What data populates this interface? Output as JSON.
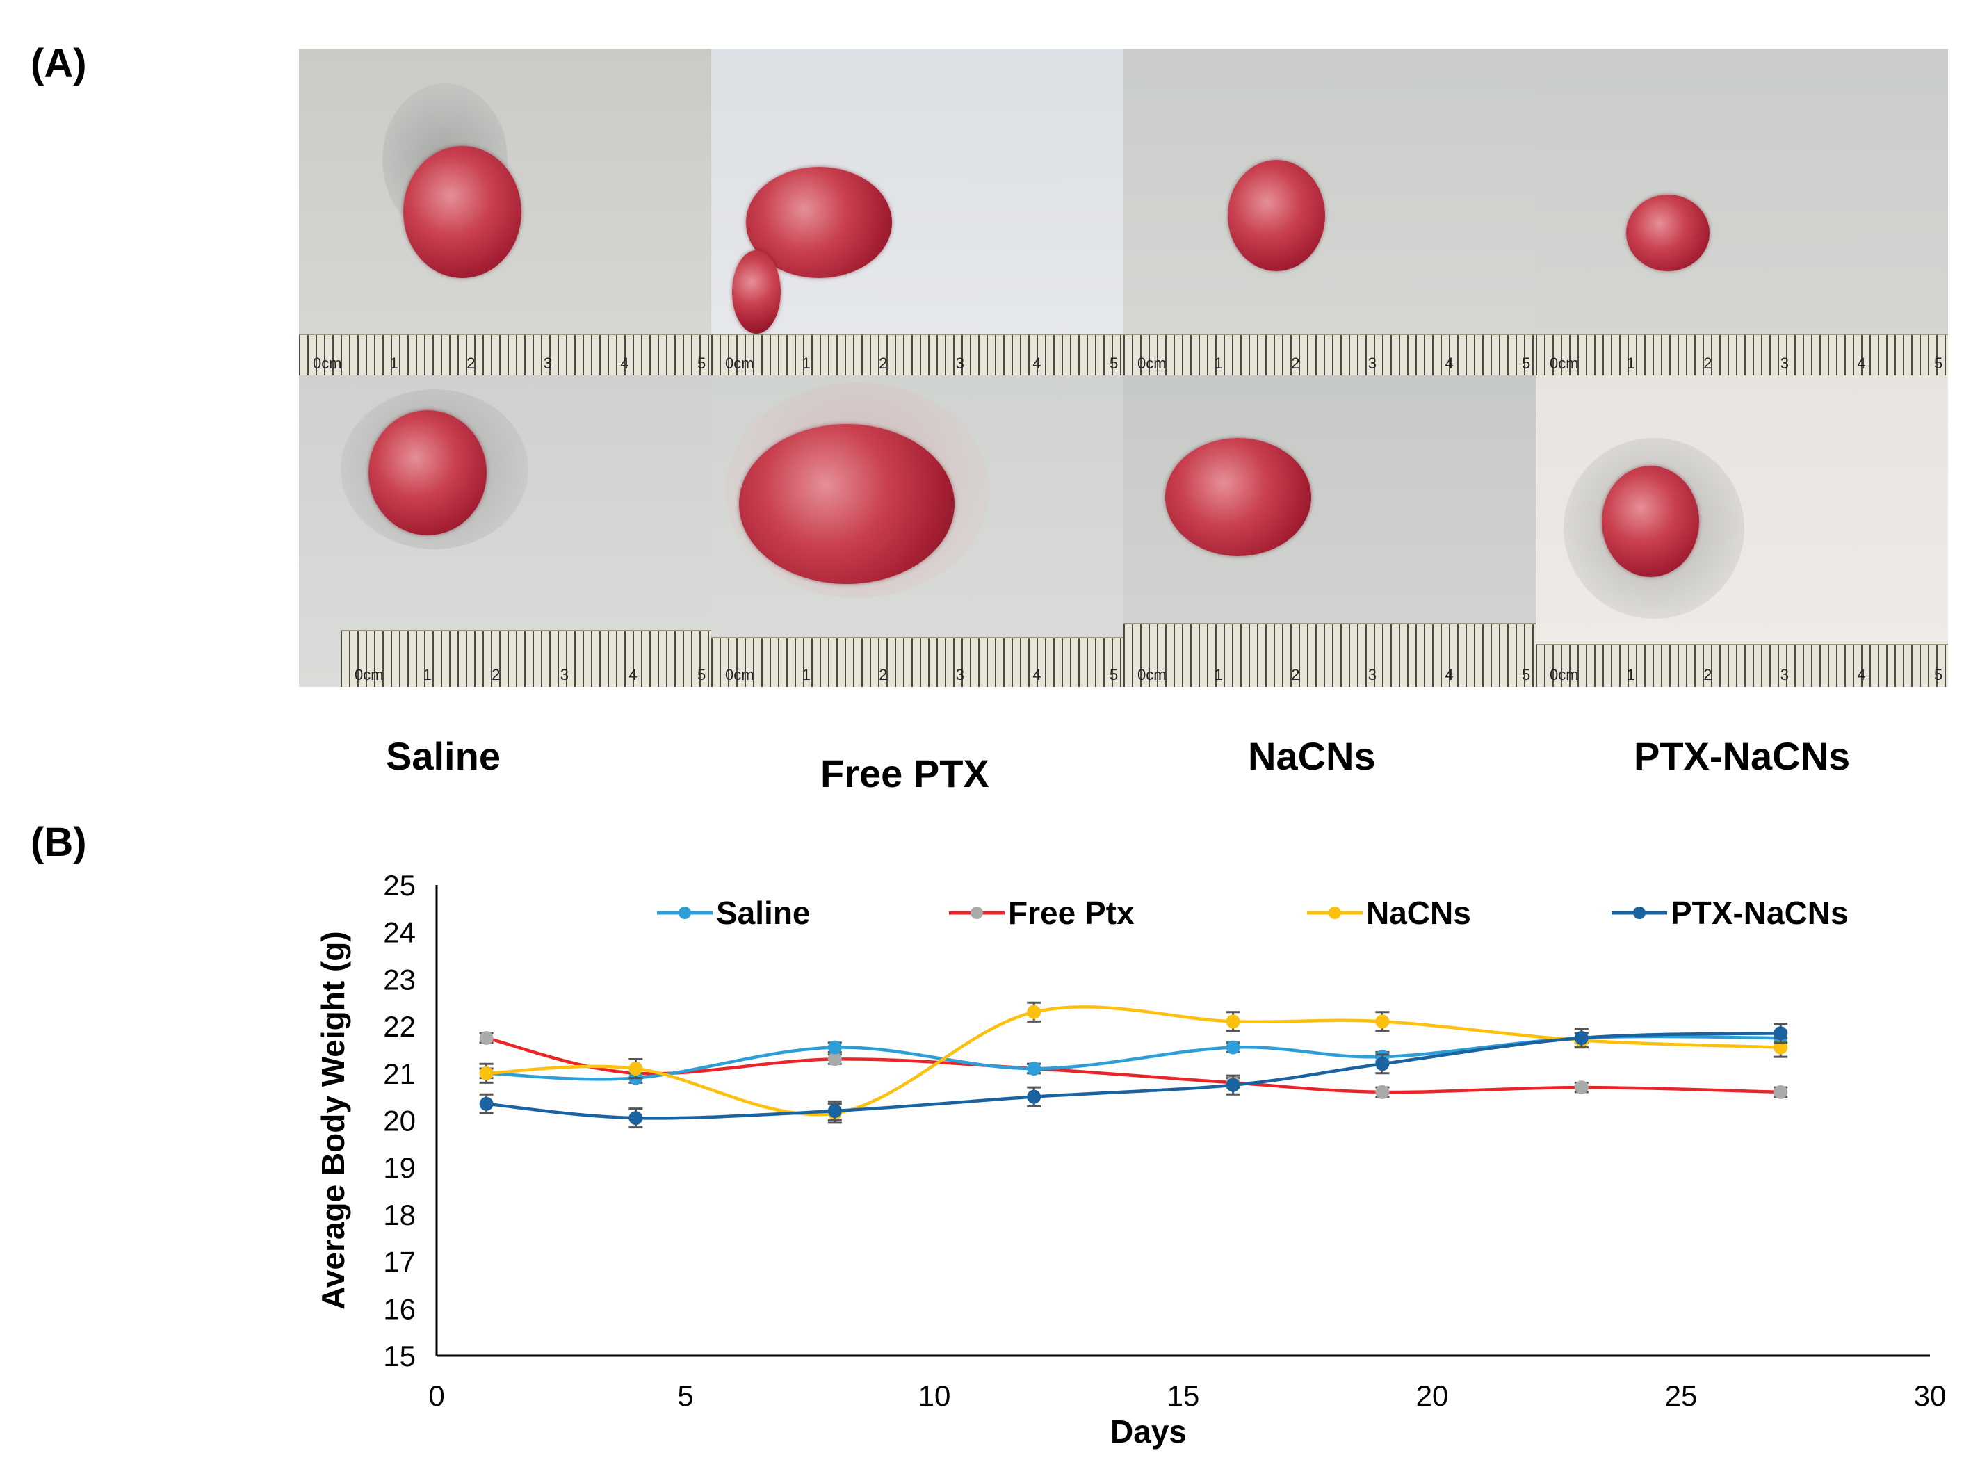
{
  "panel_a": {
    "label": "(A)",
    "groups": [
      "Saline",
      "Free PTX",
      "NaCNs",
      "PTX-NaCNs"
    ],
    "ruler_unit": "0cm"
  },
  "panel_b": {
    "label": "(B)"
  },
  "colors": {
    "saline": "#2e9ed8",
    "free_ptx": "#e8262a",
    "nacns": "#fcc00f",
    "ptx_nacns": "#1a62a0",
    "error_bar": "#999999"
  },
  "chart_data": {
    "type": "line",
    "title": "",
    "xlabel": "Days",
    "ylabel": "Average Body Weight (g)",
    "xlim": [
      0,
      30
    ],
    "ylim": [
      15,
      25
    ],
    "x_ticks": [
      0,
      5,
      10,
      15,
      20,
      25,
      30
    ],
    "y_ticks": [
      15,
      16,
      17,
      18,
      19,
      20,
      21,
      22,
      23,
      24,
      25
    ],
    "grid": false,
    "legend_position": "top",
    "x": [
      1,
      4,
      8,
      12,
      16,
      19,
      23,
      27
    ],
    "series": [
      {
        "name": "Saline",
        "color": "#2e9ed8",
        "marker_color": "#2e9ed8",
        "values": [
          21.0,
          20.9,
          21.55,
          21.1,
          21.55,
          21.35,
          21.75,
          21.75
        ],
        "errors": [
          0.1,
          0.1,
          0.1,
          0.1,
          0.1,
          0.1,
          0.1,
          0.1
        ]
      },
      {
        "name": "Free Ptx",
        "color": "#e8262a",
        "marker_color": "#aaaaaa",
        "values": [
          21.75,
          21.0,
          21.3,
          21.1,
          20.8,
          20.6,
          20.7,
          20.6
        ],
        "errors": [
          0.1,
          0.1,
          0.1,
          0.1,
          0.1,
          0.1,
          0.1,
          0.1
        ]
      },
      {
        "name": "NaCNs",
        "color": "#fcc00f",
        "marker_color": "#fcc00f",
        "values": [
          21.0,
          21.1,
          20.15,
          22.3,
          22.1,
          22.1,
          21.7,
          21.55
        ],
        "errors": [
          0.2,
          0.2,
          0.2,
          0.2,
          0.2,
          0.2,
          0.15,
          0.2
        ]
      },
      {
        "name": "PTX-NaCNs",
        "color": "#1a62a0",
        "marker_color": "#1a62a0",
        "values": [
          20.35,
          20.05,
          20.2,
          20.5,
          20.75,
          21.2,
          21.75,
          21.85
        ],
        "errors": [
          0.2,
          0.2,
          0.2,
          0.2,
          0.2,
          0.2,
          0.2,
          0.2
        ]
      }
    ]
  }
}
